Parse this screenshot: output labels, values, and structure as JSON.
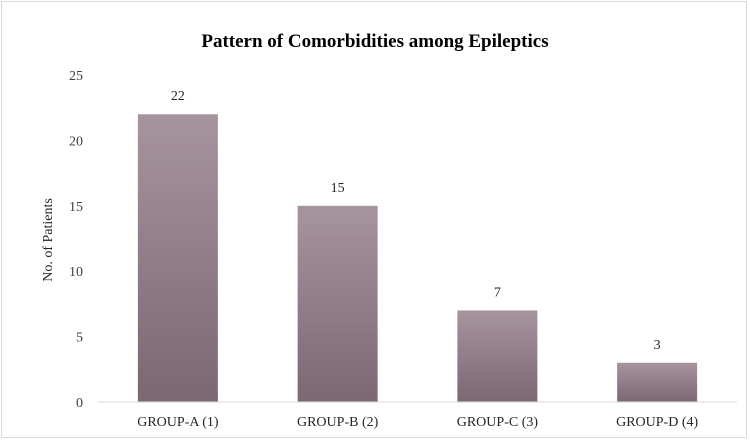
{
  "chart_data": {
    "type": "bar",
    "title": "Pattern of Comorbidities among Epileptics",
    "xlabel": "",
    "ylabel": "No. of Patients",
    "categories": [
      "GROUP-A (1)",
      "GROUP-B (2)",
      "GROUP-C (3)",
      "GROUP-D (4)"
    ],
    "values": [
      22,
      15,
      7,
      3
    ],
    "data_labels": [
      "22",
      "15",
      "7",
      "3"
    ],
    "ylim": [
      0,
      25
    ],
    "yticks": [
      "0",
      "5",
      "10",
      "15",
      "20",
      "25"
    ],
    "grid": false,
    "legend": "none",
    "colors": {
      "bar_top": "#a6949f",
      "bar_bottom": "#7c6773",
      "axis": "#d9d9d9"
    }
  }
}
